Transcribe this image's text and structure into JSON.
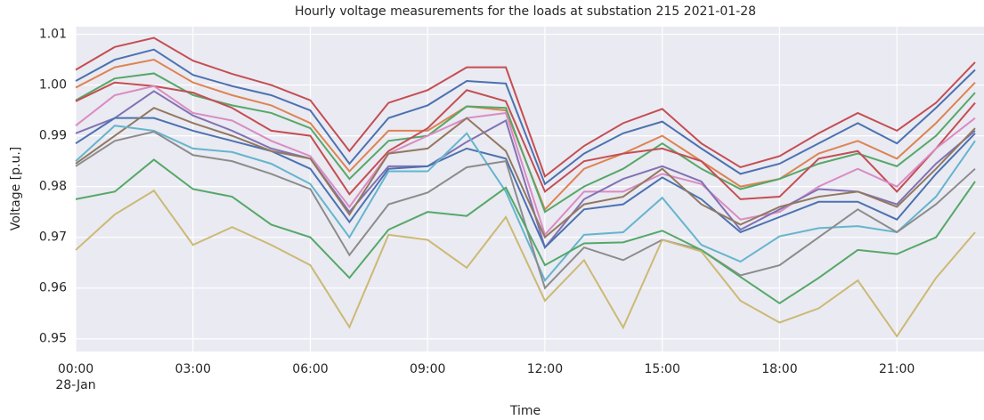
{
  "chart_data": {
    "type": "line",
    "title": "Hourly voltage measurements for the loads at substation 215 2021-01-28",
    "x_label": "Time",
    "y_label": "Voltage [p.u.]",
    "date_label": "28-Jan",
    "x": [
      0,
      1,
      2,
      3,
      4,
      5,
      6,
      7,
      8,
      9,
      10,
      11,
      12,
      13,
      14,
      15,
      16,
      17,
      18,
      19,
      20,
      21,
      22,
      23
    ],
    "xlim": [
      0,
      23
    ],
    "xticks": [
      {
        "value": 0,
        "label": "00:00"
      },
      {
        "value": 3,
        "label": "03:00"
      },
      {
        "value": 6,
        "label": "06:00"
      },
      {
        "value": 9,
        "label": "09:00"
      },
      {
        "value": 12,
        "label": "12:00"
      },
      {
        "value": 15,
        "label": "15:00"
      },
      {
        "value": 18,
        "label": "18:00"
      },
      {
        "value": 21,
        "label": "21:00"
      }
    ],
    "ylim": [
      0.9475,
      1.0115
    ],
    "yticks": [
      0.95,
      0.96,
      0.97,
      0.98,
      0.99,
      {
        "value": 1,
        "label": "1.00"
      },
      1.01
    ],
    "grid": true,
    "series": [
      {
        "color": "#c44e52",
        "values": [
          1.003,
          1.0075,
          1.0093,
          1.0048,
          1.0022,
          1.0,
          0.997,
          0.987,
          0.9965,
          0.999,
          1.0035,
          1.0035,
          0.982,
          0.988,
          0.9925,
          0.9953,
          0.9885,
          0.9838,
          0.986,
          0.9905,
          0.9945,
          0.991,
          0.9965,
          1.0045
        ]
      },
      {
        "color": "#4c72b0",
        "values": [
          1.0008,
          1.005,
          1.007,
          1.002,
          0.9998,
          0.998,
          0.995,
          0.9845,
          0.9935,
          0.996,
          1.0008,
          1.0003,
          0.9805,
          0.9865,
          0.9905,
          0.9928,
          0.9875,
          0.9825,
          0.9845,
          0.9885,
          0.9925,
          0.9885,
          0.9955,
          1.003
        ]
      },
      {
        "color": "#dd8452",
        "values": [
          0.9995,
          1.0035,
          1.005,
          1.0005,
          0.998,
          0.996,
          0.9925,
          0.983,
          0.991,
          0.991,
          0.9958,
          0.995,
          0.9755,
          0.9835,
          0.9865,
          0.99,
          0.985,
          0.98,
          0.9815,
          0.9865,
          0.989,
          0.9855,
          0.9925,
          1.0005
        ]
      },
      {
        "color": "#55a868",
        "values": [
          0.997,
          1.0013,
          1.0023,
          0.998,
          0.996,
          0.9945,
          0.9915,
          0.9815,
          0.989,
          0.99,
          0.9958,
          0.9955,
          0.975,
          0.98,
          0.9835,
          0.9885,
          0.9835,
          0.9795,
          0.9815,
          0.9845,
          0.9865,
          0.984,
          0.99,
          0.9985
        ]
      },
      {
        "color": "#c44e52",
        "values": [
          0.9968,
          1.0005,
          0.9998,
          0.9985,
          0.9955,
          0.991,
          0.99,
          0.9785,
          0.987,
          0.9915,
          0.999,
          0.9968,
          0.979,
          0.985,
          0.9865,
          0.9875,
          0.985,
          0.9775,
          0.978,
          0.9855,
          0.987,
          0.979,
          0.9875,
          0.9965
        ]
      },
      {
        "color": "#da8bc3",
        "values": [
          0.992,
          0.998,
          0.9998,
          0.9945,
          0.993,
          0.989,
          0.986,
          0.976,
          0.9865,
          0.99,
          0.9935,
          0.9945,
          0.9705,
          0.979,
          0.979,
          0.9825,
          0.9805,
          0.9735,
          0.975,
          0.98,
          0.9835,
          0.98,
          0.9875,
          0.9935
        ]
      },
      {
        "color": "#8172b3",
        "values": [
          0.9905,
          0.9935,
          0.9988,
          0.994,
          0.991,
          0.9875,
          0.9855,
          0.975,
          0.984,
          0.984,
          0.9888,
          0.993,
          0.968,
          0.9775,
          0.9815,
          0.984,
          0.981,
          0.9715,
          0.9755,
          0.9795,
          0.979,
          0.9765,
          0.9845,
          0.991
        ]
      },
      {
        "color": "#4c72b0",
        "values": [
          0.9885,
          0.9935,
          0.9935,
          0.991,
          0.989,
          0.987,
          0.9835,
          0.973,
          0.9835,
          0.984,
          0.9875,
          0.9855,
          0.968,
          0.9755,
          0.9765,
          0.9818,
          0.9775,
          0.971,
          0.974,
          0.977,
          0.977,
          0.9735,
          0.9825,
          0.9905
        ]
      },
      {
        "color": "#937860",
        "values": [
          0.9845,
          0.99,
          0.9955,
          0.9925,
          0.99,
          0.987,
          0.9855,
          0.9745,
          0.9865,
          0.9875,
          0.9935,
          0.987,
          0.97,
          0.9765,
          0.978,
          0.9835,
          0.9765,
          0.9725,
          0.976,
          0.978,
          0.979,
          0.976,
          0.9835,
          0.9915
        ]
      },
      {
        "color": "#64b5cd",
        "values": [
          0.985,
          0.992,
          0.991,
          0.9875,
          0.9868,
          0.9845,
          0.9805,
          0.97,
          0.983,
          0.983,
          0.9905,
          0.979,
          0.9615,
          0.9705,
          0.971,
          0.9778,
          0.9685,
          0.9652,
          0.9702,
          0.9718,
          0.9722,
          0.971,
          0.978,
          0.989
        ]
      },
      {
        "color": "#8c8c8c",
        "values": [
          0.984,
          0.989,
          0.9908,
          0.9862,
          0.985,
          0.9825,
          0.9795,
          0.9665,
          0.9765,
          0.9788,
          0.9838,
          0.985,
          0.96,
          0.968,
          0.9655,
          0.9695,
          0.9675,
          0.9625,
          0.9645,
          0.97,
          0.9755,
          0.971,
          0.9765,
          0.9835
        ]
      },
      {
        "color": "#55a868",
        "values": [
          0.9775,
          0.979,
          0.9853,
          0.9795,
          0.978,
          0.9725,
          0.97,
          0.962,
          0.9715,
          0.975,
          0.9742,
          0.9798,
          0.9645,
          0.9688,
          0.969,
          0.9713,
          0.9675,
          0.9622,
          0.957,
          0.962,
          0.9675,
          0.9667,
          0.97,
          0.981
        ]
      },
      {
        "color": "#ccb974",
        "values": [
          0.9675,
          0.9745,
          0.9792,
          0.9685,
          0.972,
          0.9685,
          0.9645,
          0.9523,
          0.9705,
          0.9695,
          0.964,
          0.974,
          0.9575,
          0.9655,
          0.9522,
          0.9695,
          0.9672,
          0.9575,
          0.9532,
          0.956,
          0.9615,
          0.9505,
          0.962,
          0.971
        ]
      }
    ]
  }
}
